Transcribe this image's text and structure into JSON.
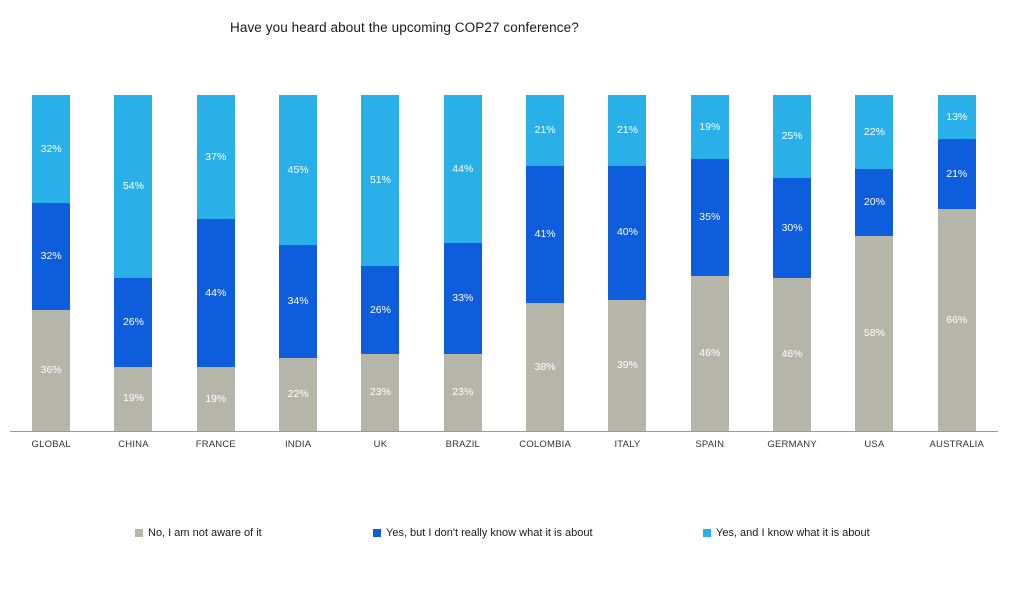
{
  "chart_data": {
    "type": "bar",
    "stacked": true,
    "percent_stacked": true,
    "title": "Have you heard about the upcoming COP27 conference?",
    "categories": [
      "GLOBAL",
      "CHINA",
      "FRANCE",
      "INDIA",
      "UK",
      "BRAZIL",
      "COLOMBIA",
      "ITALY",
      "SPAIN",
      "GERMANY",
      "USA",
      "AUSTRALIA"
    ],
    "series": [
      {
        "name": "No, I am not aware of it",
        "color": "#b5b5aa",
        "values": [
          36,
          19,
          19,
          22,
          23,
          23,
          38,
          39,
          46,
          46,
          58,
          66
        ]
      },
      {
        "name": "Yes, but I don't really know what it is about",
        "color": "#0d5ddc",
        "values": [
          32,
          26,
          44,
          34,
          26,
          33,
          41,
          40,
          35,
          30,
          20,
          21
        ]
      },
      {
        "name": "Yes, and I know what it is about",
        "color": "#29b0e8",
        "values": [
          32,
          54,
          37,
          45,
          51,
          44,
          21,
          21,
          19,
          25,
          22,
          13
        ]
      }
    ],
    "value_suffix": "%",
    "ylim": [
      0,
      100
    ],
    "grid": false,
    "legend_position": "bottom",
    "axis_line_color": "#9a9a9a",
    "label_color": "#ffffff"
  }
}
